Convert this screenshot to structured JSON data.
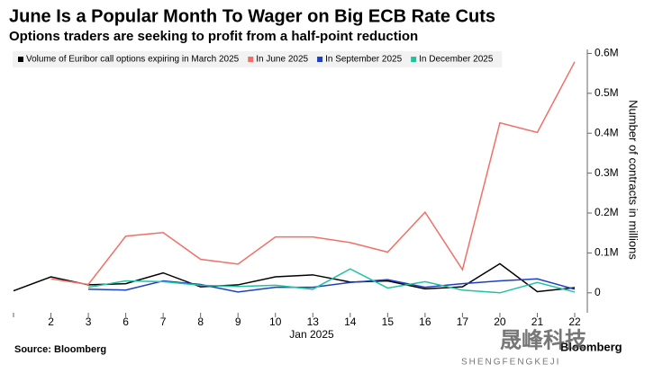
{
  "chart_data": {
    "type": "line",
    "title": "June Is a Popular Month To Wager on Big ECB Rate Cuts",
    "subtitle": "Options traders are seeking to profit from a half-point reduction",
    "xlabel": "Jan 2025",
    "ylabel": "Number of contracts in millions",
    "source": "Source: Bloomberg",
    "brand": "Bloomberg",
    "watermark": [
      "晟峰科技",
      "SHENGFENGKEJI"
    ],
    "categories": [
      null,
      "2",
      "3",
      "6",
      "7",
      "8",
      "9",
      "10",
      "13",
      "14",
      "15",
      "16",
      "17",
      "20",
      "21",
      "22"
    ],
    "series": [
      {
        "name": "Volume of Euribor call options expiring in March 2025",
        "color": "#000000",
        "values": [
          0.005,
          0.04,
          0.02,
          0.023,
          0.05,
          0.015,
          0.02,
          0.04,
          0.045,
          0.027,
          0.03,
          0.01,
          0.015,
          0.073,
          0.003,
          0.013
        ]
      },
      {
        "name": "In June 2025",
        "color": "#f07067",
        "values": [
          null,
          0.035,
          0.021,
          0.142,
          0.151,
          0.084,
          0.072,
          0.14,
          0.14,
          0.126,
          0.102,
          0.202,
          0.058,
          0.426,
          0.402,
          0.579
        ]
      },
      {
        "name": "In September 2025",
        "color": "#1e3fc1",
        "values": [
          null,
          null,
          0.009,
          0.007,
          0.03,
          0.021,
          0.002,
          0.014,
          0.014,
          0.026,
          0.033,
          0.014,
          0.023,
          0.03,
          0.035,
          0.009
        ]
      },
      {
        "name": "In December 2025",
        "color": "#20c3a0",
        "values": [
          null,
          null,
          0.014,
          0.03,
          0.028,
          0.019,
          0.016,
          0.019,
          0.009,
          0.06,
          0.012,
          0.028,
          0.007,
          0,
          0.026,
          0.002
        ]
      }
    ],
    "ylim": [
      -0.05,
      0.61
    ],
    "yticks": [
      0,
      {
        "value": 0.1,
        "label": "0.1M"
      },
      {
        "value": 0.2,
        "label": "0.2M"
      },
      {
        "value": 0.3,
        "label": "0.3M"
      },
      {
        "value": 0.4,
        "label": "0.4M"
      },
      {
        "value": 0.5,
        "label": "0.5M"
      },
      {
        "value": 0.6,
        "label": "0.6M"
      }
    ],
    "y_axis_side": "right",
    "legend": "top-left"
  }
}
